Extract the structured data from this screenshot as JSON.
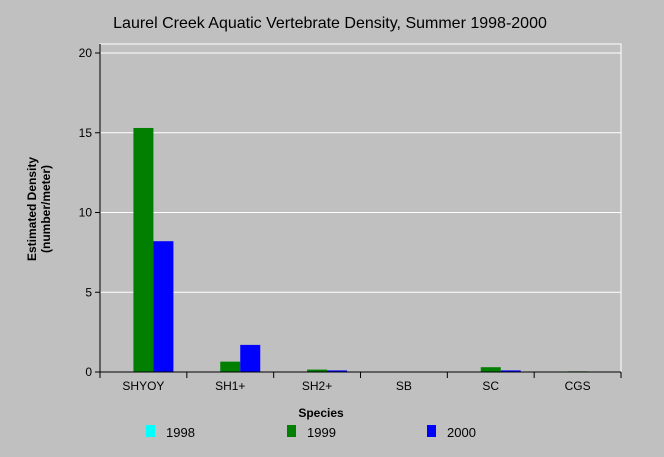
{
  "chart_data": {
    "type": "bar",
    "title": "Laurel Creek Aquatic Vertebrate Density, Summer 1998-2000",
    "xlabel": "Species",
    "ylabel_line1": "Estimated Density",
    "ylabel_line2": "(number/meter)",
    "categories": [
      "SHYOY",
      "SH1+",
      "SH2+",
      "SB",
      "SC",
      "CGS"
    ],
    "ylim": [
      0,
      20
    ],
    "yticks": [
      0,
      5,
      10,
      15,
      20
    ],
    "grid": true,
    "legend_position": "bottom",
    "series": [
      {
        "name": "1998",
        "color": "#00ffff",
        "values": [
          0,
          0,
          0,
          0,
          0,
          0
        ]
      },
      {
        "name": "1999",
        "color": "#007f00",
        "values": [
          15.3,
          0.65,
          0.15,
          0,
          0.3,
          0.04
        ]
      },
      {
        "name": "2000",
        "color": "#0000ff",
        "values": [
          8.2,
          1.7,
          0.1,
          0,
          0.1,
          0
        ]
      }
    ]
  }
}
